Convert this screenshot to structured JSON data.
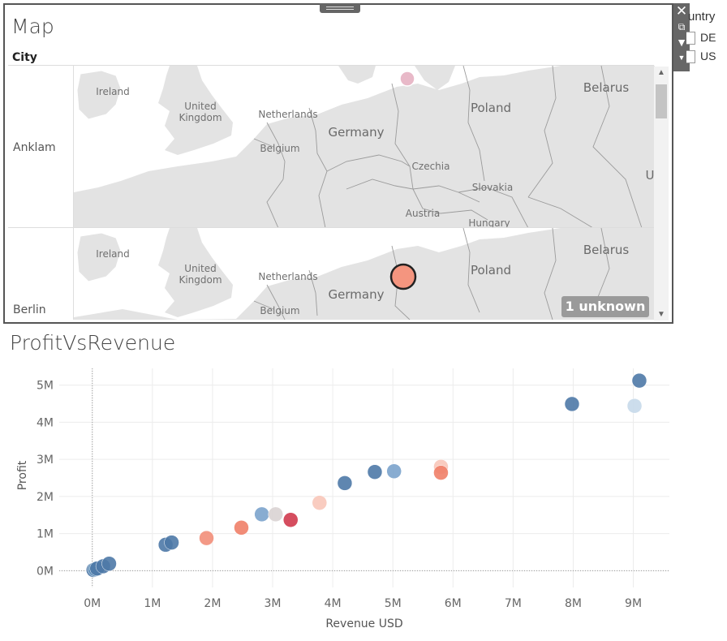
{
  "colors": {
    "frame": "#555555",
    "land": "#e3e3e3",
    "water": "#ffffff",
    "border": "#9b9b9b",
    "dark_blue": "#4e79a7",
    "mid_blue": "#7ba3cc",
    "light_blue": "#c6d9ea",
    "light_salmon": "#f8c6b9",
    "salmon": "#f28e79",
    "coral": "#f07f68",
    "pink_light": "#e8b9c8",
    "grey_light": "#d9d3d3",
    "red": "#d03a4e"
  },
  "map": {
    "title": "Map",
    "column_header": "City",
    "rows": [
      {
        "city": "Anklam",
        "labels": {
          "ireland": "Ireland",
          "uk": "United\nKingdom",
          "netherlands": "Netherlands",
          "belgium": "Belgium",
          "germany": "Germany",
          "czechia": "Czechia",
          "slovakia": "Slovakia",
          "austria": "Austria",
          "hungary": "Hungary",
          "poland": "Poland",
          "belarus": "Belarus",
          "ukraine_partial": "U"
        },
        "marker": {
          "color": "#e8b9c8",
          "highlighted": false
        }
      },
      {
        "city": "Berlin",
        "labels": {
          "ireland": "Ireland",
          "uk": "United\nKingdom",
          "netherlands": "Netherlands",
          "belgium": "Belgium",
          "germany": "Germany",
          "poland": "Poland",
          "belarus": "Belarus"
        },
        "marker": {
          "color": "#f4957f",
          "highlighted": true
        }
      }
    ],
    "unknown_badge": "1 unknown",
    "scroll_up_icon": "caret-up-icon",
    "scroll_down_icon": "caret-down-icon"
  },
  "toolbar": {
    "close_icon": "close-icon",
    "popout_icon": "popout-icon",
    "filter_icon": "filter-icon",
    "menu_icon": "caret-down-icon"
  },
  "legend": {
    "title": "untry",
    "items": [
      {
        "label": "DE"
      },
      {
        "label": "US"
      }
    ]
  },
  "chart_title": "ProfitVsRevenue",
  "chart_data": {
    "type": "scatter",
    "title": "ProfitVsRevenue",
    "xlabel": "Revenue USD",
    "ylabel": "Profit",
    "xlim": [
      -0.55,
      9.6
    ],
    "ylim": [
      -0.45,
      5.45
    ],
    "x_ticks": [
      {
        "value": 0,
        "label": "0M"
      },
      {
        "value": 1,
        "label": "1M"
      },
      {
        "value": 2,
        "label": "2M"
      },
      {
        "value": 3,
        "label": "3M"
      },
      {
        "value": 4,
        "label": "4M"
      },
      {
        "value": 5,
        "label": "5M"
      },
      {
        "value": 6,
        "label": "6M"
      },
      {
        "value": 7,
        "label": "7M"
      },
      {
        "value": 8,
        "label": "8M"
      },
      {
        "value": 9,
        "label": "9M"
      }
    ],
    "y_ticks": [
      {
        "value": 0,
        "label": "0M"
      },
      {
        "value": 1,
        "label": "1M"
      },
      {
        "value": 2,
        "label": "2M"
      },
      {
        "value": 3,
        "label": "3M"
      },
      {
        "value": 4,
        "label": "4M"
      },
      {
        "value": 5,
        "label": "5M"
      }
    ],
    "units": "millions",
    "grid": true,
    "points": [
      {
        "x": 0.02,
        "y": 0.02,
        "color": "#4e79a7"
      },
      {
        "x": 0.05,
        "y": 0.04,
        "color": "#5b8db8"
      },
      {
        "x": 0.08,
        "y": 0.06,
        "color": "#4e79a7"
      },
      {
        "x": 0.18,
        "y": 0.12,
        "color": "#4e79a7"
      },
      {
        "x": 0.28,
        "y": 0.19,
        "color": "#4e79a7"
      },
      {
        "x": 1.22,
        "y": 0.7,
        "color": "#4e79a7"
      },
      {
        "x": 1.32,
        "y": 0.76,
        "color": "#4e79a7"
      },
      {
        "x": 1.9,
        "y": 0.88,
        "color": "#f28e79"
      },
      {
        "x": 2.48,
        "y": 1.16,
        "color": "#f07f68"
      },
      {
        "x": 2.82,
        "y": 1.52,
        "color": "#7ba3cc"
      },
      {
        "x": 3.05,
        "y": 1.52,
        "color": "#d9d3d3"
      },
      {
        "x": 3.3,
        "y": 1.37,
        "color": "#d03a4e"
      },
      {
        "x": 3.78,
        "y": 1.83,
        "color": "#f8c6b9"
      },
      {
        "x": 4.2,
        "y": 2.36,
        "color": "#4e79a7"
      },
      {
        "x": 4.7,
        "y": 2.66,
        "color": "#4e79a7"
      },
      {
        "x": 5.02,
        "y": 2.68,
        "color": "#7ba3cc"
      },
      {
        "x": 5.8,
        "y": 2.8,
        "color": "#f8c6b9"
      },
      {
        "x": 5.8,
        "y": 2.64,
        "color": "#f07f68"
      },
      {
        "x": 7.98,
        "y": 4.49,
        "color": "#4e79a7"
      },
      {
        "x": 9.02,
        "y": 4.44,
        "color": "#c6d9ea"
      },
      {
        "x": 9.1,
        "y": 5.12,
        "color": "#4e79a7"
      }
    ]
  }
}
